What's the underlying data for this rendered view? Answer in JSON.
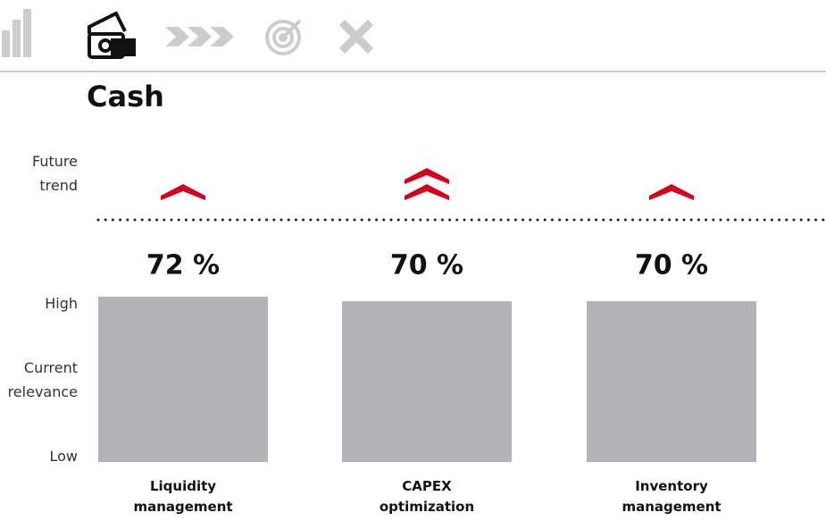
{
  "chart_data": {
    "type": "bar",
    "title": "Cash",
    "categories": [
      "Liquidity management",
      "CAPEX optimization",
      "Inventory management"
    ],
    "values": [
      72,
      70,
      70
    ],
    "value_labels": [
      "72 %",
      "70 %",
      "70 %"
    ],
    "color": "#b4b3b9",
    "ylim": [
      0,
      100
    ],
    "trend_label": "Future trend",
    "trend_levels": [
      1,
      2,
      1
    ],
    "trend_color": "#d5001c",
    "ylabel": "Current relevance",
    "ylabel_high": "High",
    "ylabel_low": "Low"
  }
}
